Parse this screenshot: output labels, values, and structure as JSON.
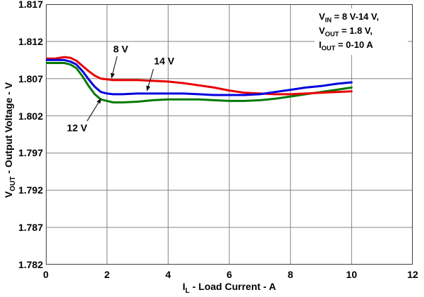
{
  "chart_data": {
    "type": "line",
    "title": "",
    "xlabel": {
      "base": "I",
      "sub": "L",
      "rest": " - Load Current - A"
    },
    "ylabel": {
      "base": "V",
      "sub": "OUT",
      "rest": " - Output Voltage - V"
    },
    "xlim": [
      0,
      12
    ],
    "ylim": [
      1.782,
      1.817
    ],
    "x_ticks": [
      0,
      2,
      4,
      6,
      8,
      10,
      12
    ],
    "y_ticks": [
      1.817,
      1.812,
      1.807,
      1.802,
      1.797,
      1.792,
      1.787,
      1.782
    ],
    "y_tick_decimals": 3,
    "grid": true,
    "legend_position": "none",
    "x": [
      0,
      0.3,
      0.6,
      0.8,
      1.0,
      1.2,
      1.4,
      1.6,
      1.8,
      2.0,
      2.2,
      2.5,
      3.0,
      3.5,
      4.0,
      4.5,
      5.0,
      5.5,
      6.0,
      6.5,
      7.0,
      7.5,
      8.0,
      8.5,
      9.0,
      9.5,
      10.0
    ],
    "series": [
      {
        "name": "12 V",
        "color": "#007a00",
        "values": [
          1.8091,
          1.8091,
          1.8091,
          1.8089,
          1.8084,
          1.8073,
          1.806,
          1.8049,
          1.8042,
          1.804,
          1.8038,
          1.8038,
          1.8039,
          1.8041,
          1.8042,
          1.8042,
          1.8042,
          1.8041,
          1.804,
          1.804,
          1.8041,
          1.8043,
          1.8046,
          1.8049,
          1.8052,
          1.8055,
          1.8058
        ]
      },
      {
        "name": "8 V",
        "color": "#e80000",
        "values": [
          1.8097,
          1.8097,
          1.8099,
          1.8098,
          1.8094,
          1.8087,
          1.808,
          1.8074,
          1.807,
          1.8069,
          1.8068,
          1.8068,
          1.8068,
          1.8067,
          1.8066,
          1.8064,
          1.8061,
          1.8058,
          1.8054,
          1.8051,
          1.805,
          1.8049,
          1.8049,
          1.805,
          1.8051,
          1.8052,
          1.8053
        ]
      },
      {
        "name": "14 V",
        "color": "#0000dd",
        "values": [
          1.8095,
          1.8095,
          1.8095,
          1.8093,
          1.8089,
          1.808,
          1.8069,
          1.8059,
          1.8052,
          1.805,
          1.8049,
          1.8049,
          1.805,
          1.805,
          1.805,
          1.805,
          1.8049,
          1.8048,
          1.8048,
          1.8048,
          1.8049,
          1.8052,
          1.8055,
          1.8058,
          1.806,
          1.8063,
          1.8065
        ]
      }
    ],
    "curve_labels": [
      {
        "text": "8 V",
        "label_x": 2.45,
        "label_v": 1.811,
        "arrow_from_x": 2.33,
        "arrow_from_v": 1.81,
        "arrow_to_x": 2.15,
        "arrow_to_v": 1.8071
      },
      {
        "text": "14 V",
        "label_x": 3.87,
        "label_v": 1.8094,
        "arrow_from_x": 3.52,
        "arrow_from_v": 1.8083,
        "arrow_to_x": 3.31,
        "arrow_to_v": 1.8054
      },
      {
        "text": "12 V",
        "label_x": 1.02,
        "label_v": 1.8004,
        "arrow_from_x": 1.35,
        "arrow_from_v": 1.8013,
        "arrow_to_x": 1.8,
        "arrow_to_v": 1.8043
      }
    ],
    "conditions_note": {
      "lines": [
        {
          "base": "V",
          "sub": "IN",
          "rest": " = 8 V-14 V,"
        },
        {
          "base": "V",
          "sub": "OUT",
          "rest": " = 1.8 V,"
        },
        {
          "base": "I",
          "sub": "OUT",
          "rest": " = 0-10 A"
        }
      ]
    }
  },
  "colors": {
    "background": "#ffffff",
    "grid": "#858585",
    "plot_border": "#3f3f3f",
    "text": "#000000",
    "arrow": "#111111",
    "series_8v": "#e80000",
    "series_12v": "#007a00",
    "series_14v": "#0000dd"
  }
}
